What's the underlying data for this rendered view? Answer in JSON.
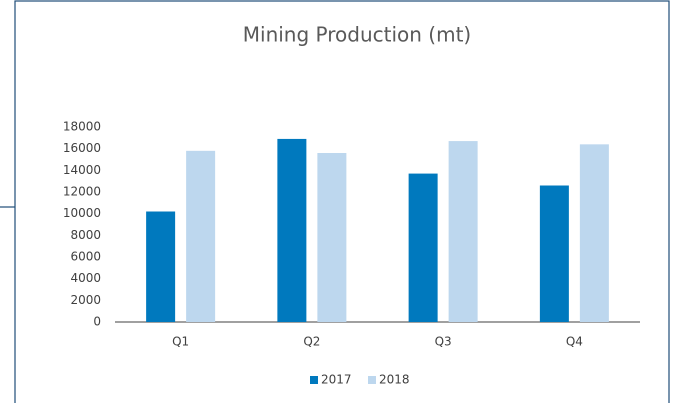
{
  "chart_data": {
    "type": "bar",
    "title": "Mining Production (mt)",
    "categories": [
      "Q1",
      "Q2",
      "Q3",
      "Q4"
    ],
    "series": [
      {
        "name": "2017",
        "color": "#0079be",
        "values": [
          10200,
          16900,
          13700,
          12600
        ]
      },
      {
        "name": "2018",
        "color": "#bdd7ee",
        "values": [
          15800,
          15600,
          16700,
          16400
        ]
      }
    ],
    "ylim": [
      0,
      18000
    ],
    "yticks": [
      0,
      2000,
      4000,
      6000,
      8000,
      10000,
      12000,
      14000,
      16000,
      18000
    ],
    "grid": false,
    "legend": "bottom"
  }
}
